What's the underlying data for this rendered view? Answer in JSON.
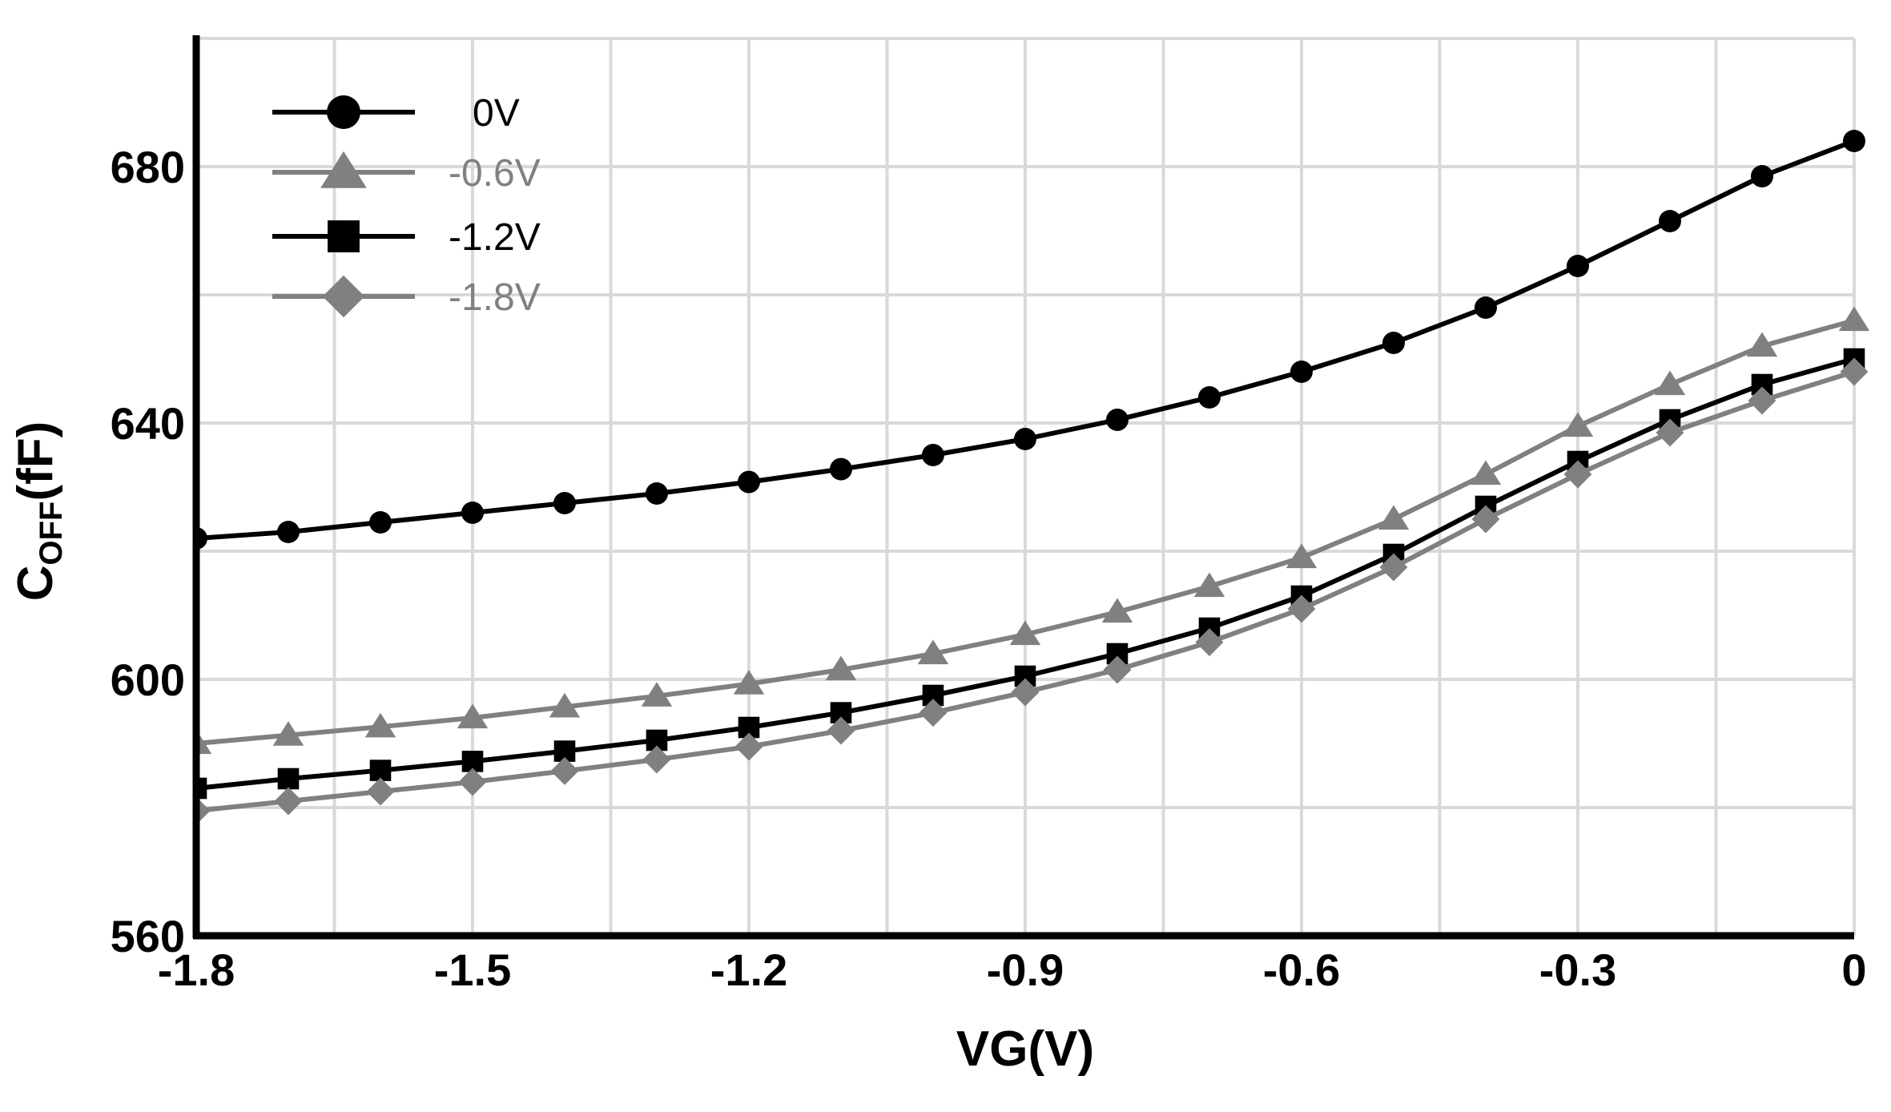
{
  "chart_data": {
    "type": "line",
    "title": "",
    "xlabel": "VG(V)",
    "ylabel": {
      "main": "C",
      "sub": "OFF",
      "unit": "(fF)"
    },
    "xlim": [
      -1.8,
      0
    ],
    "ylim": [
      560,
      700
    ],
    "x_ticks": [
      -1.8,
      -1.5,
      -1.2,
      -0.9,
      -0.6,
      -0.3,
      0
    ],
    "x_tick_labels": [
      "-1.8",
      "-1.5",
      "-1.2",
      "-0.9",
      "-0.6",
      "-0.3",
      "0"
    ],
    "y_ticks": [
      560,
      600,
      640,
      680
    ],
    "y_tick_labels": [
      "560",
      "600",
      "640",
      "680"
    ],
    "grid": true,
    "legend_position": "top-left",
    "x": [
      -1.8,
      -1.7,
      -1.6,
      -1.5,
      -1.4,
      -1.3,
      -1.2,
      -1.1,
      -1.0,
      -0.9,
      -0.8,
      -0.7,
      -0.6,
      -0.5,
      -0.4,
      -0.3,
      -0.2,
      -0.1,
      0
    ],
    "series": [
      {
        "name": "0V",
        "marker": "circle",
        "color": "#000000",
        "values": [
          622,
          623,
          624.5,
          626,
          627.5,
          629,
          630.8,
          632.8,
          635,
          637.5,
          640.5,
          644,
          648,
          652.5,
          658,
          664.5,
          671.5,
          678.5,
          684
        ]
      },
      {
        "name": "-0.6V",
        "marker": "triangle",
        "color": "#808080",
        "values": [
          590,
          591.3,
          592.6,
          594,
          595.7,
          597.4,
          599.3,
          601.5,
          604,
          607,
          610.5,
          614.5,
          619,
          625,
          632,
          639.5,
          646,
          652,
          656
        ]
      },
      {
        "name": "-1.2V",
        "marker": "square",
        "color": "#000000",
        "values": [
          583,
          584.5,
          585.8,
          587.2,
          588.8,
          590.5,
          592.5,
          594.8,
          597.5,
          600.5,
          604,
          608,
          613,
          619.5,
          627,
          634,
          640.5,
          646,
          650
        ]
      },
      {
        "name": "-1.8V",
        "marker": "diamond",
        "color": "#808080",
        "values": [
          579.5,
          581,
          582.5,
          584,
          585.7,
          587.5,
          589.5,
          592,
          594.8,
          598,
          601.5,
          605.8,
          611,
          617.5,
          625,
          632,
          638.5,
          643.5,
          648
        ]
      }
    ]
  }
}
